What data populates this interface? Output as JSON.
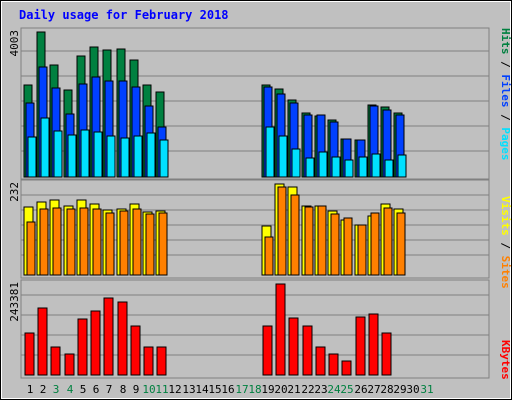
{
  "chart_data": {
    "type": "bar",
    "title": "Daily usage for February 2018",
    "x": [
      "1",
      "2",
      "3",
      "4",
      "5",
      "6",
      "7",
      "8",
      "9",
      "10",
      "11",
      "12",
      "13",
      "14",
      "15",
      "16",
      "17",
      "18",
      "19",
      "20",
      "21",
      "22",
      "23",
      "24",
      "25",
      "26",
      "27",
      "28",
      "29",
      "30",
      "31"
    ],
    "weekend_days": [
      3,
      4,
      10,
      11,
      17,
      18,
      24,
      25,
      31
    ],
    "panels": [
      {
        "id": "hits-files-pages",
        "ymax_label": "4003",
        "ymax": 4003,
        "legend": [
          "Pages",
          "Files",
          "Hits"
        ],
        "series": [
          {
            "name": "Hits",
            "color": "#008040",
            "values": [
              2530,
              4003,
              3080,
              2390,
              3350,
              3600,
              3510,
              3520,
              3240,
              2540,
              2340,
              0,
              0,
              0,
              0,
              0,
              0,
              0,
              2530,
              2420,
              2130,
              1770,
              1690,
              1580,
              1040,
              1030,
              2000,
              1920,
              1760,
              0,
              0
            ]
          },
          {
            "name": "Files",
            "color": "#0040ff",
            "values": [
              2030,
              3050,
              2460,
              1740,
              2560,
              2770,
              2640,
              2640,
              2490,
              1960,
              1390,
              0,
              0,
              0,
              0,
              0,
              0,
              0,
              2480,
              2290,
              2050,
              1710,
              1700,
              1520,
              1040,
              1020,
              1970,
              1850,
              1700,
              0,
              0
            ]
          },
          {
            "name": "Pages",
            "color": "#00e0ff",
            "values": [
              1100,
              1630,
              1270,
              1170,
              1290,
              1240,
              1140,
              1090,
              1130,
              1210,
              1020,
              0,
              0,
              0,
              0,
              0,
              0,
              0,
              1390,
              1140,
              770,
              530,
              680,
              560,
              480,
              540,
              640,
              460,
              600,
              0,
              0
            ]
          }
        ]
      },
      {
        "id": "visits-sites",
        "ymax_label": "232",
        "ymax": 232,
        "legend": [
          "Sites",
          "Visits"
        ],
        "series": [
          {
            "name": "Visits",
            "color": "#ffff00",
            "values": [
              174,
              186,
              190,
              176,
              190,
              181,
              165,
              168,
              182,
              160,
              162,
              0,
              0,
              0,
              0,
              0,
              0,
              0,
              124,
              232,
              224,
              177,
              176,
              163,
              140,
              128,
              150,
              181,
              167,
              0,
              0
            ]
          },
          {
            "name": "Sites",
            "color": "#ff8000",
            "values": [
              134,
              169,
              172,
              169,
              172,
              167,
              157,
              163,
              169,
              155,
              157,
              0,
              0,
              0,
              0,
              0,
              0,
              0,
              98,
              225,
              204,
              173,
              175,
              155,
              145,
              128,
              157,
              172,
              157,
              0,
              0
            ]
          }
        ]
      },
      {
        "id": "kbytes",
        "ymax_label": "243381",
        "ymax": 243381,
        "legend": [
          "KBytes"
        ],
        "series": [
          {
            "name": "KBytes",
            "color": "#ff0000",
            "values": [
              112000,
              180000,
              75000,
              57000,
              150000,
              172000,
              205000,
              195000,
              132000,
              75000,
              75000,
              0,
              0,
              0,
              0,
              0,
              0,
              0,
              132000,
              243381,
              152000,
              132000,
              75000,
              57000,
              38000,
              155000,
              162000,
              112000,
              0,
              0,
              0
            ]
          }
        ]
      }
    ]
  },
  "colors": {
    "background": "#c0c0c0",
    "title": "#0000ff",
    "weekday_label": "#000000",
    "weekend_label": "#008040",
    "grid": "#808080",
    "bar_outline": "#000000"
  }
}
